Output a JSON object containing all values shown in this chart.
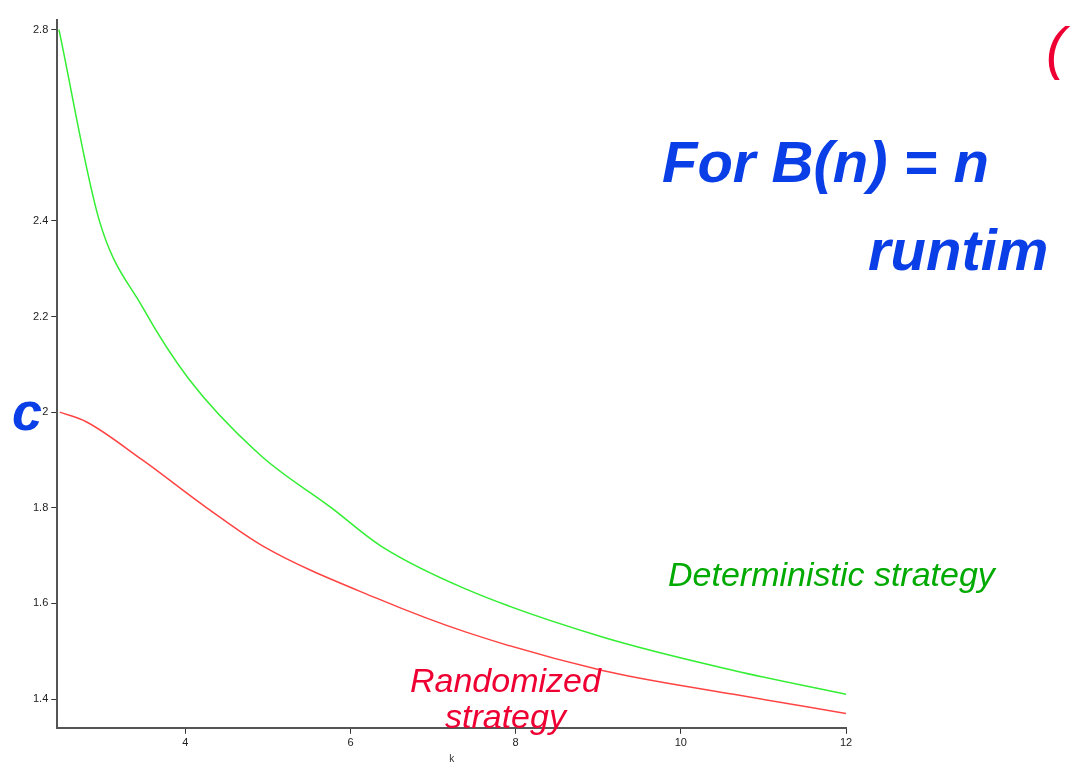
{
  "chart_data": {
    "type": "line",
    "title": "For B(n) = n",
    "subtitle": "runtim",
    "annotations": [
      "("
    ],
    "xlabel": "k",
    "ylabel": "c",
    "xlim": [
      2.45,
      12
    ],
    "xticks": [
      4,
      6,
      8,
      10,
      12
    ],
    "ylim": [
      1.34,
      2.82
    ],
    "yticks": [
      1.4,
      1.6,
      1.8,
      2,
      2.2,
      2.4,
      2.8
    ],
    "grid": false,
    "legend": false,
    "marker": "none",
    "line_style": "solid",
    "series": [
      {
        "name": "Deterministic strategy",
        "color": "#33ee33",
        "x": [
          2.47,
          2.96,
          3.48,
          4.04,
          4.91,
          5.77,
          6.37,
          7.4,
          9.05,
          10.64,
          12
        ],
        "values": [
          2.8,
          2.4,
          2.22,
          2.07,
          1.91,
          1.8,
          1.72,
          1.63,
          1.53,
          1.46,
          1.41
        ]
      },
      {
        "name": "Randomized strategy",
        "color": "#ff4444",
        "x": [
          2.48,
          2.8,
          3.48,
          4.26,
          4.94,
          6.33,
          7.4,
          9.05,
          10.64,
          12
        ],
        "values": [
          2,
          1.98,
          1.9,
          1.8,
          1.72,
          1.61,
          1.54,
          1.46,
          1.41,
          1.37
        ]
      }
    ]
  }
}
